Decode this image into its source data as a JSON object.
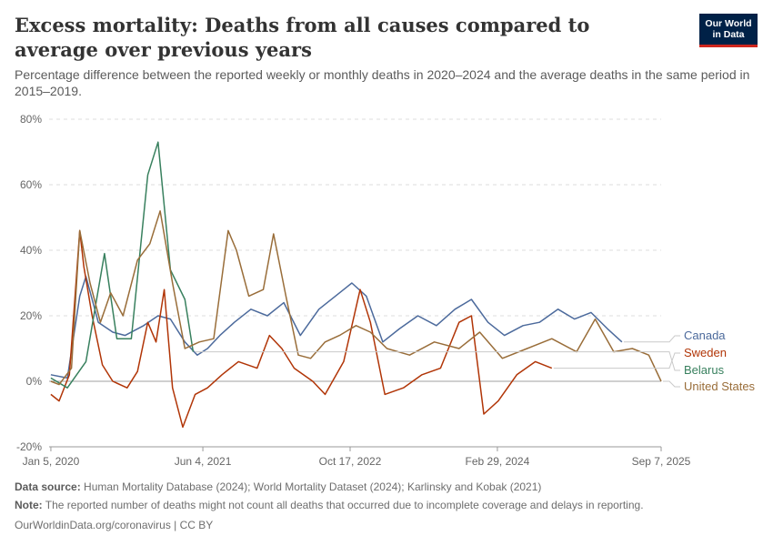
{
  "header": {
    "title": "Excess mortality: Deaths from all causes compared to average over previous years",
    "subtitle": "Percentage difference between the reported weekly or monthly deaths in 2020–2024 and the average deaths in the same period in 2015–2019.",
    "logo_line1": "Our World",
    "logo_line2": "in Data"
  },
  "footer": {
    "source_label": "Data source:",
    "source_text": "Human Mortality Database (2024); World Mortality Dataset (2024); Karlinsky and Kobak (2021)",
    "note_label": "Note:",
    "note_text": "The reported number of deaths might not count all deaths that occurred due to incomplete coverage and delays in reporting.",
    "credit": "OurWorldinData.org/coronavirus | CC BY"
  },
  "colors": {
    "Canada": "#4c6a9c",
    "Sweden": "#b13507",
    "Belarus": "#38805e",
    "United States": "#996d39",
    "logo_bg": "#002147",
    "logo_accent": "#ce261e"
  },
  "chart_data": {
    "type": "line",
    "title": "",
    "xlabel": "",
    "ylabel": "",
    "x_ticks": [
      "Jan 5, 2020",
      "Jun 4, 2021",
      "Oct 17, 2022",
      "Feb 29, 2024",
      "Sep 7, 2025"
    ],
    "y_ticks": [
      "-20%",
      "0%",
      "20%",
      "40%",
      "60%",
      "80%"
    ],
    "xlim": [
      "2019-12-30",
      "2025-09-07"
    ],
    "ylim": [
      -20,
      80
    ],
    "grid": "horizontal dashed",
    "legend_placement": "right (end-of-line labels)",
    "series": [
      {
        "name": "Canada",
        "x": [
          "2020-01-05",
          "2020-03-01",
          "2020-04-12",
          "2020-05-03",
          "2020-06-14",
          "2020-08-02",
          "2020-09-13",
          "2020-11-15",
          "2021-01-03",
          "2021-02-14",
          "2021-04-04",
          "2021-05-16",
          "2021-06-20",
          "2021-08-01",
          "2021-09-19",
          "2021-11-14",
          "2022-01-09",
          "2022-03-06",
          "2022-05-01",
          "2022-07-03",
          "2022-08-28",
          "2022-10-23",
          "2022-12-11",
          "2023-02-05",
          "2023-04-02",
          "2023-06-04",
          "2023-08-06",
          "2023-10-08",
          "2023-12-03",
          "2024-01-28",
          "2024-03-24",
          "2024-05-26",
          "2024-07-21",
          "2024-09-22",
          "2024-11-17",
          "2025-01-12",
          "2025-03-09",
          "2025-04-27"
        ],
        "values": [
          2,
          1,
          26,
          32,
          18,
          15,
          14,
          17,
          20,
          19,
          12,
          8,
          10,
          14,
          18,
          22,
          20,
          24,
          14,
          22,
          26,
          30,
          26,
          12,
          16,
          20,
          17,
          22,
          25,
          18,
          14,
          17,
          18,
          22,
          19,
          21,
          16,
          12
        ]
      },
      {
        "name": "Sweden",
        "x": [
          "2020-01-05",
          "2020-02-02",
          "2020-03-08",
          "2020-04-12",
          "2020-04-26",
          "2020-05-24",
          "2020-06-28",
          "2020-08-02",
          "2020-09-20",
          "2020-10-25",
          "2020-11-29",
          "2020-12-27",
          "2021-01-24",
          "2021-02-21",
          "2021-03-28",
          "2021-05-09",
          "2021-06-20",
          "2021-08-08",
          "2021-10-03",
          "2021-12-05",
          "2022-01-16",
          "2022-02-27",
          "2022-04-10",
          "2022-06-12",
          "2022-07-24",
          "2022-09-25",
          "2022-11-20",
          "2022-12-25",
          "2023-02-12",
          "2023-04-16",
          "2023-06-18",
          "2023-08-20",
          "2023-10-22",
          "2023-12-03",
          "2024-01-14",
          "2024-03-03",
          "2024-05-05",
          "2024-07-07",
          "2024-09-01"
        ],
        "values": [
          -4,
          -6,
          2,
          46,
          35,
          20,
          5,
          0,
          -2,
          3,
          18,
          12,
          28,
          -2,
          -14,
          -4,
          -2,
          2,
          6,
          4,
          14,
          10,
          4,
          0,
          -4,
          6,
          28,
          18,
          -4,
          -2,
          2,
          4,
          18,
          20,
          -10,
          -6,
          2,
          6,
          4
        ]
      },
      {
        "name": "Belarus",
        "x": [
          "2020-01-05",
          "2020-03-01",
          "2020-05-03",
          "2020-07-05",
          "2020-08-16",
          "2020-10-04",
          "2020-11-29",
          "2021-01-03",
          "2021-02-14",
          "2021-04-04",
          "2021-05-02"
        ],
        "values": [
          1,
          -2,
          6,
          39,
          13,
          13,
          63,
          73,
          34,
          25,
          9
        ]
      },
      {
        "name": "United States",
        "x": [
          "2020-01-05",
          "2020-02-02",
          "2020-03-15",
          "2020-04-12",
          "2020-05-17",
          "2020-06-21",
          "2020-07-26",
          "2020-09-06",
          "2020-10-25",
          "2020-12-06",
          "2021-01-10",
          "2021-02-21",
          "2021-04-04",
          "2021-05-23",
          "2021-07-11",
          "2021-08-29",
          "2021-09-26",
          "2021-11-07",
          "2021-12-26",
          "2022-01-30",
          "2022-03-13",
          "2022-04-24",
          "2022-06-05",
          "2022-07-24",
          "2022-09-11",
          "2022-11-06",
          "2022-12-25",
          "2023-02-19",
          "2023-05-07",
          "2023-07-30",
          "2023-10-22",
          "2023-12-31",
          "2024-03-17",
          "2024-06-09",
          "2024-09-01",
          "2024-11-24",
          "2025-01-26",
          "2025-03-30",
          "2025-06-01",
          "2025-07-27",
          "2025-09-07"
        ],
        "values": [
          0,
          -1,
          4,
          46,
          30,
          18,
          27,
          20,
          37,
          42,
          52,
          30,
          10,
          12,
          13,
          46,
          40,
          26,
          28,
          45,
          26,
          8,
          7,
          12,
          14,
          17,
          15,
          10,
          8,
          12,
          10,
          15,
          7,
          10,
          13,
          9,
          19,
          9,
          10,
          8,
          0
        ]
      }
    ]
  }
}
